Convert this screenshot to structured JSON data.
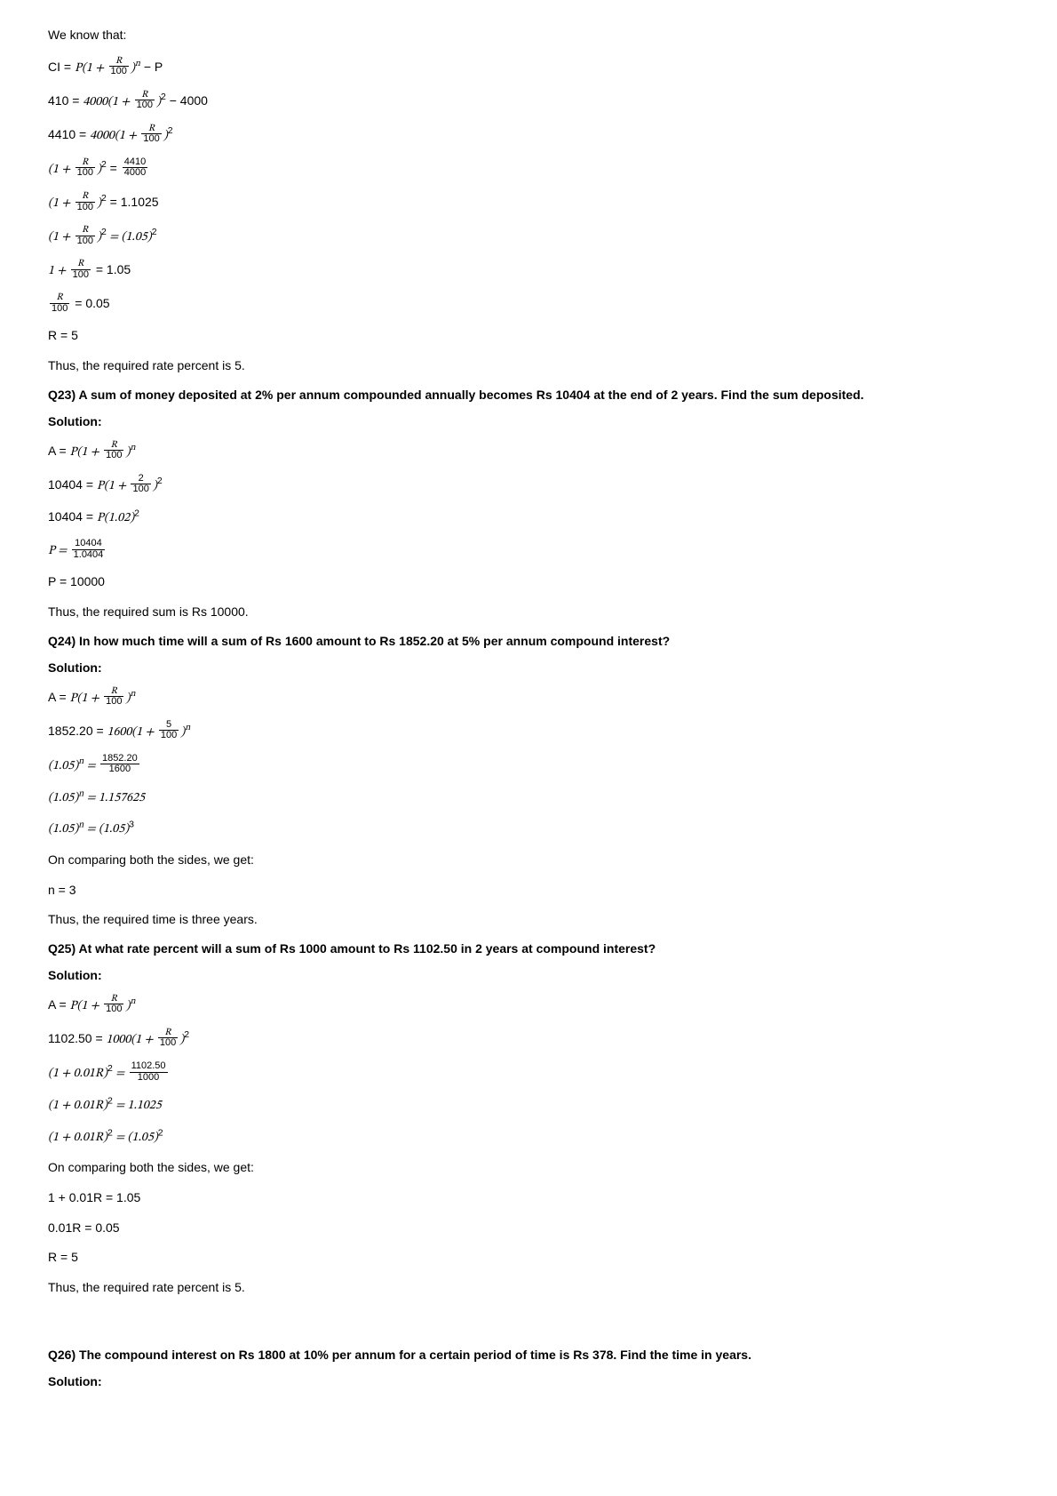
{
  "intro": "We know that:",
  "q22": {
    "l1_a": "CI = ",
    "l1_b": "P",
    "l1_c": "(1 + ",
    "l1_num": "R",
    "l1_den": "100",
    "l1_d": ")",
    "l1_sup": "n",
    "l1_e": " − P",
    "l2_a": "410 = ",
    "l2_b": "4000(1 + ",
    "l2_num": "R",
    "l2_den": "100",
    "l2_c": ")",
    "l2_sup": "2",
    "l2_d": " − 4000",
    "l3_a": "4410 = ",
    "l3_b": "4000(1 + ",
    "l3_num": "R",
    "l3_den": "100",
    "l3_c": ")",
    "l3_sup": "2",
    "l4_a": "(1 + ",
    "l4_num": "R",
    "l4_den": "100",
    "l4_b": ")",
    "l4_sup": "2",
    "l4_c": " = ",
    "l4_num2": "4410",
    "l4_den2": "4000",
    "l5_a": "(1 + ",
    "l5_num": "R",
    "l5_den": "100",
    "l5_b": ")",
    "l5_sup": "2",
    "l5_c": " = 1.1025",
    "l6_a": "(1 + ",
    "l6_num": "R",
    "l6_den": "100",
    "l6_b": ")",
    "l6_sup": "2",
    "l6_c": " = (1.05)",
    "l6_sup2": "2",
    "l7_a": "1 + ",
    "l7_num": "R",
    "l7_den": "100",
    "l7_b": " = 1.05",
    "l8_num": "R",
    "l8_den": "100",
    "l8_a": " = 0.05",
    "l9": "R = 5",
    "conclusion": "Thus, the required rate percent is 5."
  },
  "q23": {
    "title": "Q23) A sum of money deposited at 2% per annum compounded annually becomes Rs 10404 at the end of 2 years. Find the sum deposited.",
    "solution": "Solution:",
    "l1_a": "A = ",
    "l1_b": "P",
    "l1_c": "(1 + ",
    "l1_num": "R",
    "l1_den": "100",
    "l1_d": ")",
    "l1_sup": "n",
    "l2_a": "10404 = ",
    "l2_b": "P",
    "l2_c": "(1 + ",
    "l2_num": "2",
    "l2_den": "100",
    "l2_d": ")",
    "l2_sup": "2",
    "l3_a": "10404 = ",
    "l3_b": "P",
    "l3_c": "(1.02)",
    "l3_sup": "2",
    "l4_a": "P = ",
    "l4_num": "10404",
    "l4_den": "1.0404",
    "l5": "P = 10000",
    "conclusion": "Thus, the required sum is Rs 10000."
  },
  "q24": {
    "title": "Q24) In how much time will a sum of Rs 1600 amount to Rs 1852.20 at 5% per annum compound interest?",
    "solution": "Solution:",
    "l1_a": "A = ",
    "l1_b": "P",
    "l1_c": "(1 + ",
    "l1_num": "R",
    "l1_den": "100",
    "l1_d": ")",
    "l1_sup": "n",
    "l2_a": "1852.20 = ",
    "l2_b": "1600(1 + ",
    "l2_num": "5",
    "l2_den": "100",
    "l2_c": ")",
    "l2_sup": "n",
    "l3_a": "(1.05)",
    "l3_sup": "n",
    "l3_b": " = ",
    "l3_num": "1852.20",
    "l3_den": "1600",
    "l4_a": "(1.05)",
    "l4_sup": "n",
    "l4_b": " = 1.157625",
    "l5_a": "(1.05)",
    "l5_sup": "n",
    "l5_b": " = (1.05)",
    "l5_sup2": "3",
    "compare": "On comparing both the sides, we get:",
    "l6": "n = 3",
    "conclusion": "Thus, the required time is three years."
  },
  "q25": {
    "title": "Q25) At what rate percent will a sum of Rs 1000 amount to Rs 1102.50 in 2 years at compound interest?",
    "solution": "Solution:",
    "l1_a": "A = ",
    "l1_b": "P",
    "l1_c": "(1 + ",
    "l1_num": "R",
    "l1_den": "100",
    "l1_d": ")",
    "l1_sup": "n",
    "l2_a": "1102.50 = ",
    "l2_b": "1000(1 + ",
    "l2_num": "R",
    "l2_den": "100",
    "l2_c": ")",
    "l2_sup": "2",
    "l3_a": "(1 + 0.01",
    "l3_b": "R",
    "l3_c": ")",
    "l3_sup": "2",
    "l3_d": " = ",
    "l3_num": "1102.50",
    "l3_den": "1000",
    "l4_a": "(1 + 0.01",
    "l4_b": "R",
    "l4_c": ")",
    "l4_sup": "2",
    "l4_d": " = 1.1025",
    "l5_a": "(1 + 0.01",
    "l5_b": "R",
    "l5_c": ")",
    "l5_sup": "2",
    "l5_d": " = (1.05)",
    "l5_sup2": "2",
    "compare": "On comparing both the sides, we get:",
    "l6": "1 + 0.01R = 1.05",
    "l7": "0.01R = 0.05",
    "l8": "R = 5",
    "conclusion": "Thus, the required rate percent is 5."
  },
  "q26": {
    "title": "Q26) The compound interest on Rs 1800 at 10% per annum for a certain period of time is Rs 378. Find the time in years.",
    "solution": "Solution:"
  }
}
